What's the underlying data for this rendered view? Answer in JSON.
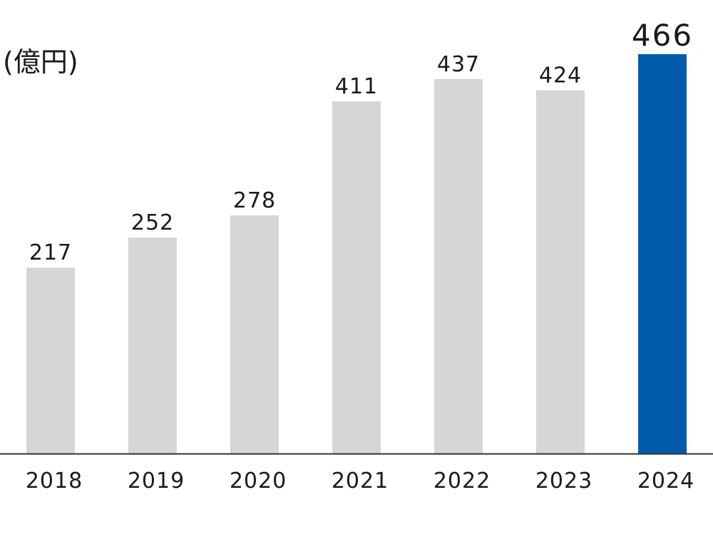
{
  "chart_data": {
    "type": "bar",
    "unit_label": "(億円)",
    "categories": [
      "2018",
      "2019",
      "2020",
      "2021",
      "2022",
      "2023",
      "2024"
    ],
    "values": [
      217,
      252,
      278,
      411,
      437,
      424,
      466
    ],
    "highlight_index": 6,
    "bar_color": "#d6d6d6",
    "highlight_color": "#005bac",
    "axis_color": "#333333",
    "ylim": [
      0,
      466
    ],
    "grid": false,
    "legend": "none"
  }
}
